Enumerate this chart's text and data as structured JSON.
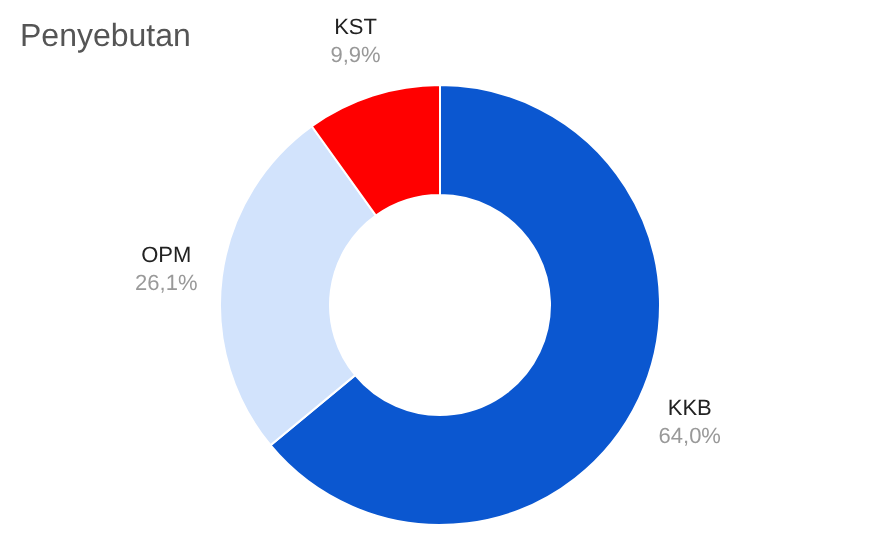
{
  "chart_data": {
    "type": "donut",
    "title": "Penyebutan",
    "categories": [
      "KKB",
      "OPM",
      "KST"
    ],
    "values": [
      64.0,
      26.1,
      9.9
    ],
    "colors": [
      "#0b57d0",
      "#d2e3fc",
      "#ff0000"
    ],
    "value_labels": [
      "64,0%",
      "26,1%",
      "9,9%"
    ]
  }
}
